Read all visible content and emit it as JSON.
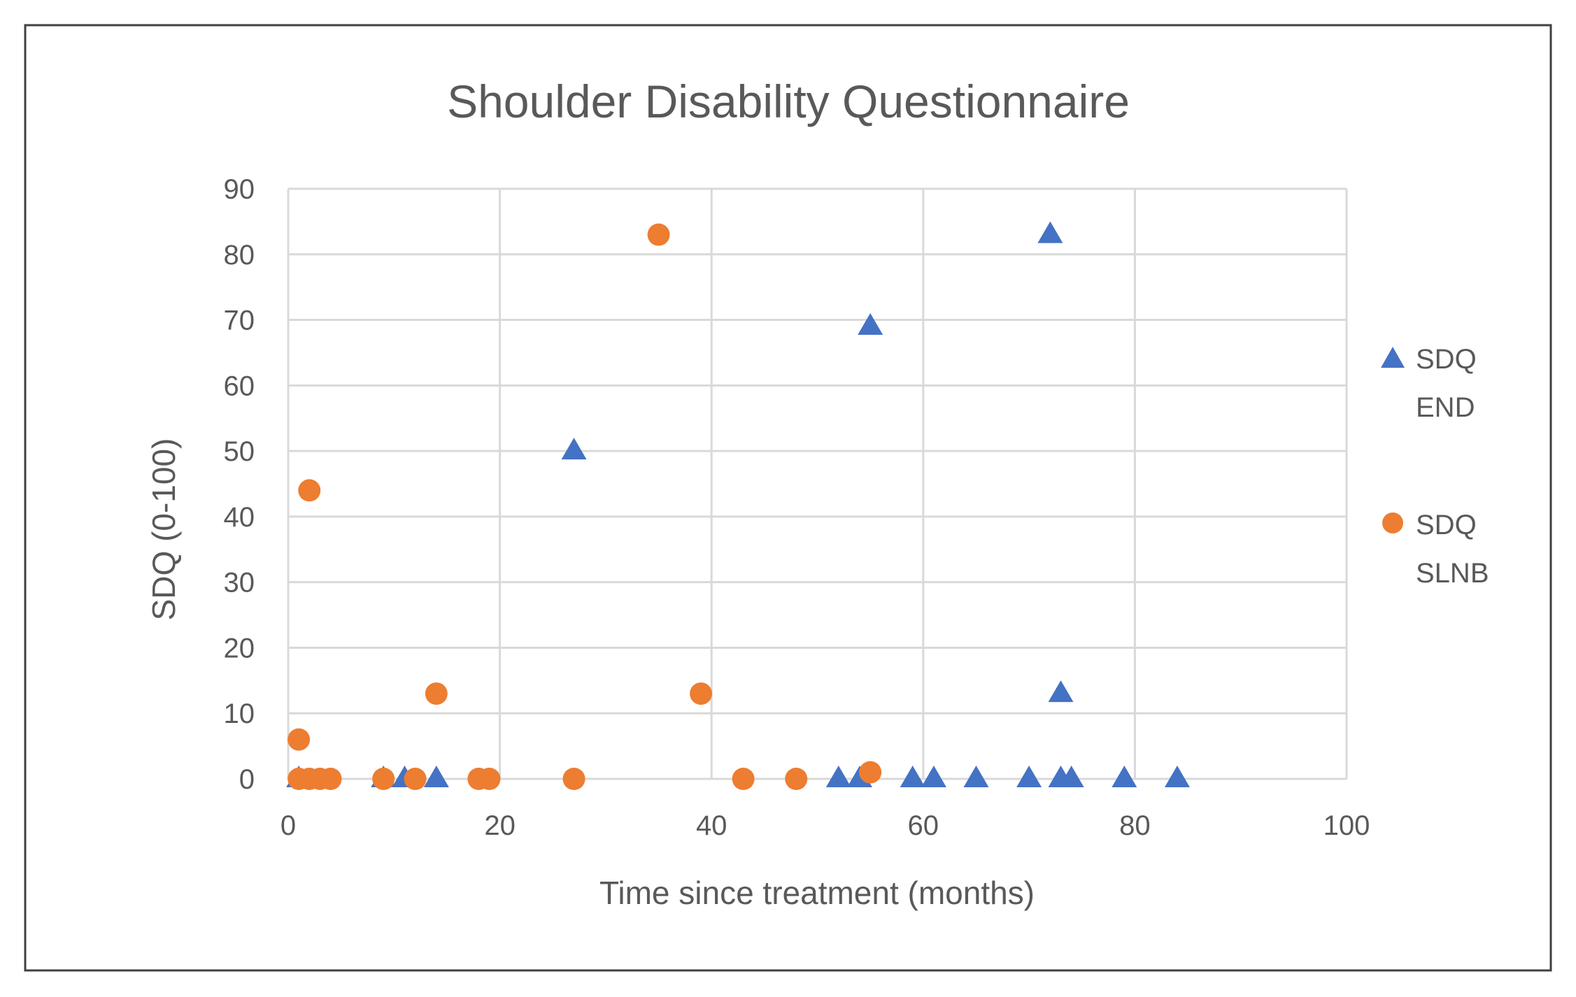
{
  "colors": {
    "series_end": "#4472C4",
    "series_slnb": "#ED7D31",
    "grid": "#D9D9D9",
    "text": "#595959",
    "frame": "#404040"
  },
  "chart_data": {
    "type": "scatter",
    "title": "Shoulder Disability Questionnaire",
    "xlabel": "Time since treatment (months)",
    "ylabel": "SDQ (0-100)",
    "xlim": [
      0,
      100
    ],
    "ylim": [
      0,
      90
    ],
    "xticks": [
      0,
      20,
      40,
      60,
      80,
      100
    ],
    "yticks": [
      0,
      10,
      20,
      30,
      40,
      50,
      60,
      70,
      80,
      90
    ],
    "grid": true,
    "legend_position": "right",
    "series": [
      {
        "name": "SDQ END",
        "legend_lines": [
          "SDQ",
          "END"
        ],
        "marker": "triangle",
        "x": [
          1,
          9,
          11,
          14,
          27,
          52,
          54,
          55,
          59,
          61,
          65,
          70,
          72,
          73,
          73,
          74,
          79,
          84
        ],
        "y": [
          0,
          0,
          0,
          0,
          50,
          0,
          0,
          69,
          0,
          0,
          0,
          0,
          83,
          13,
          0,
          0,
          0,
          0
        ]
      },
      {
        "name": "SDQ SLNB",
        "legend_lines": [
          "SDQ",
          "SLNB"
        ],
        "marker": "circle",
        "x": [
          1,
          1,
          2,
          2,
          3,
          4,
          9,
          12,
          14,
          18,
          19,
          27,
          35,
          39,
          43,
          48,
          55
        ],
        "y": [
          6,
          0,
          44,
          0,
          0,
          0,
          0,
          0,
          13,
          0,
          0,
          0,
          83,
          13,
          0,
          0,
          1
        ]
      }
    ]
  }
}
